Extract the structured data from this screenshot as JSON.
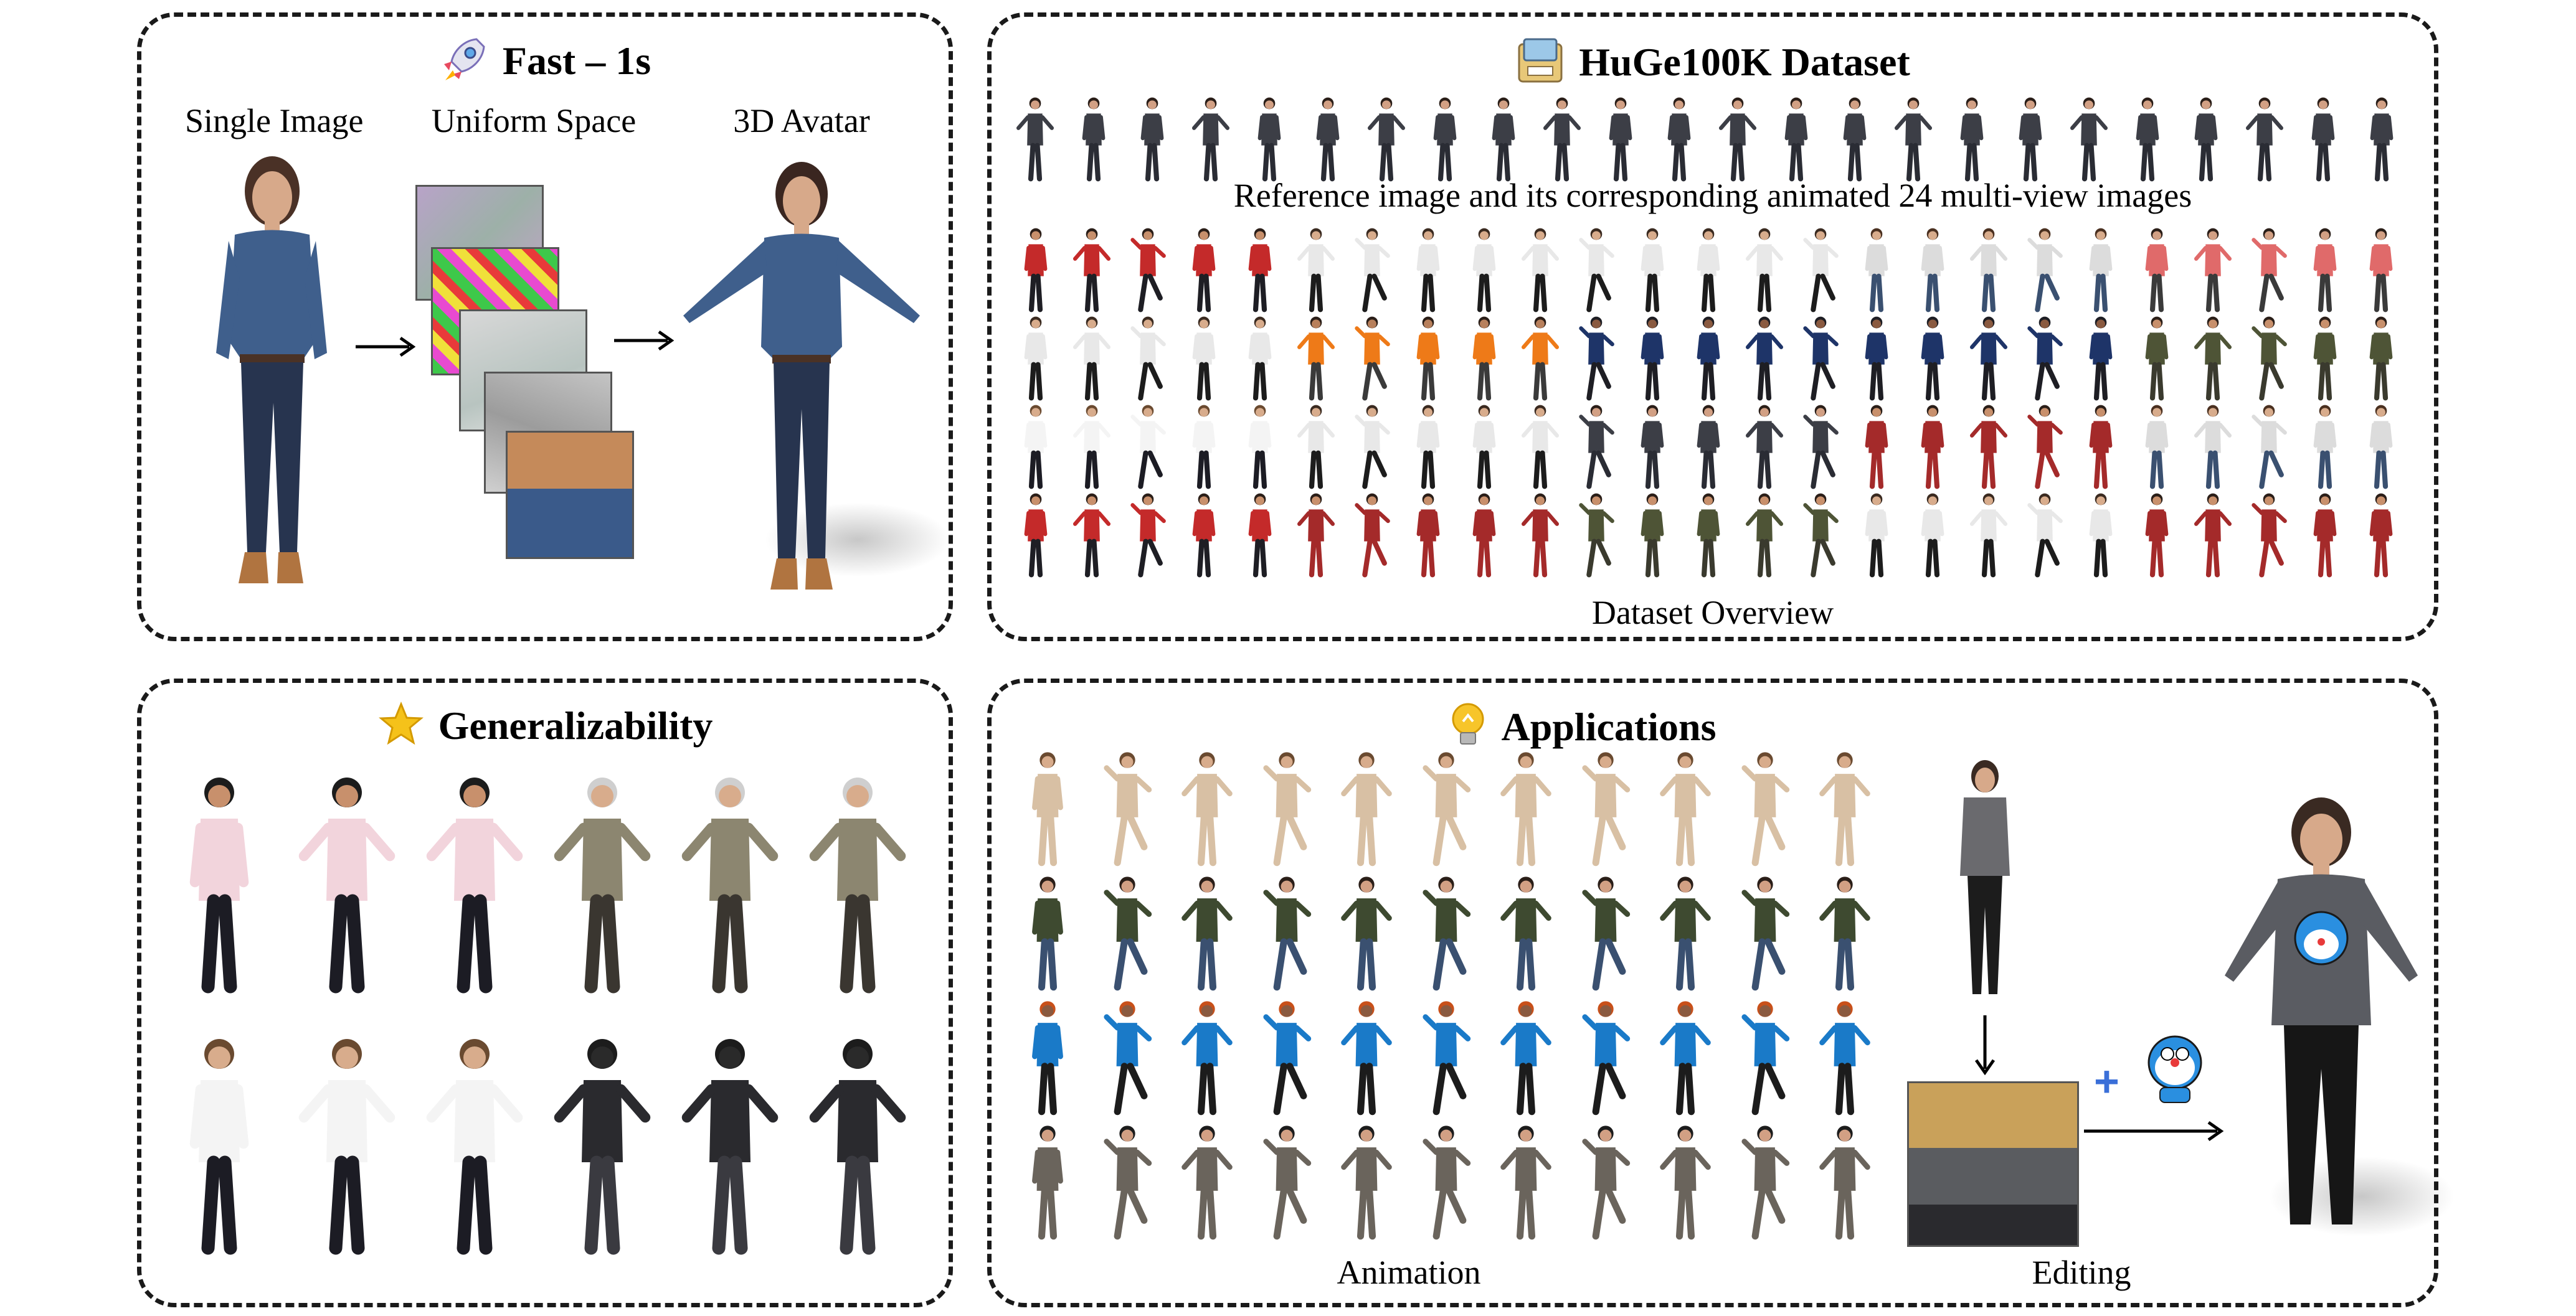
{
  "panels": {
    "fast": {
      "title": "Fast – 1s",
      "icon": "rocket-icon",
      "labels": {
        "single_image": "Single Image",
        "uniform_space": "Uniform Space",
        "avatar_3d": "3D Avatar"
      }
    },
    "dataset": {
      "title": "HuGe100K Dataset",
      "icon": "dataset-box-icon",
      "caption_reference": "Reference image and its corresponding animated 24 multi-view images",
      "caption_overview": "Dataset Overview"
    },
    "generalizability": {
      "title": "Generalizability",
      "icon": "star-icon"
    },
    "applications": {
      "title": "Applications",
      "icon": "lightbulb-icon",
      "label_animation": "Animation",
      "label_editing": "Editing"
    }
  },
  "colors": {
    "border": "#1a1a1a",
    "denim": "#3f5f8c",
    "jeans": "#27344f",
    "skin": "#d7a98a",
    "beige": "#d8c0a4",
    "arrow_blue": "#3a6fd8"
  }
}
